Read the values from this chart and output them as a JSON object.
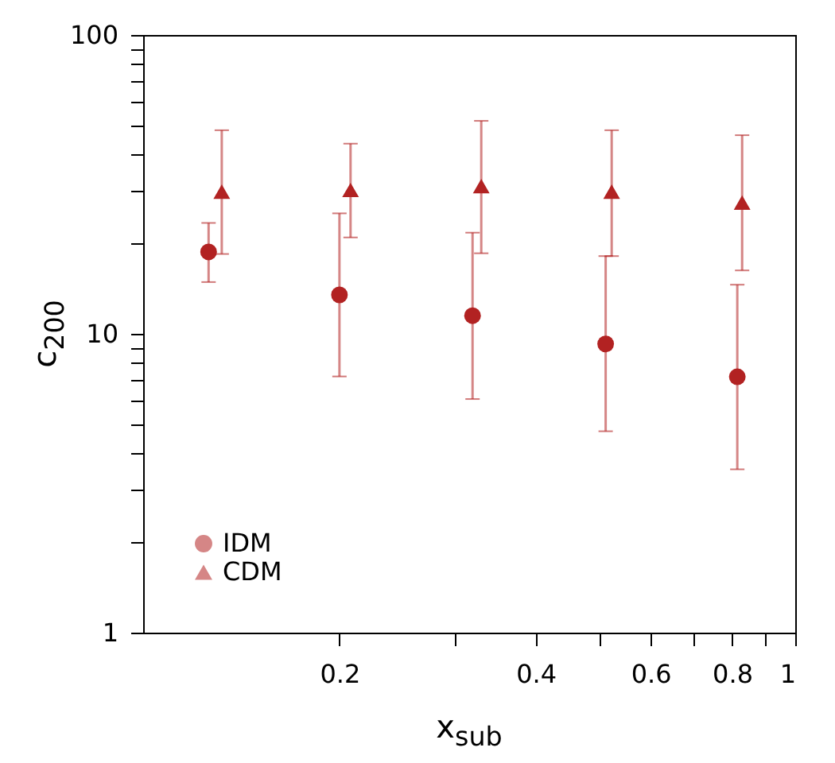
{
  "chart_data": {
    "type": "scatter",
    "xlabel": "x$_{sub}$",
    "ylabel": "c$_{200}$",
    "log": "xy",
    "grid": false,
    "legend": "bottom left",
    "xlim": [
      0.1,
      1
    ],
    "xticks": [
      {
        "value": 0.2,
        "label": "0.2"
      },
      {
        "value": 0.3,
        "label": null
      },
      {
        "value": 0.4,
        "label": "0.4"
      },
      {
        "value": 0.5,
        "label": null
      },
      {
        "value": 0.6,
        "label": "0.6"
      },
      {
        "value": 0.7,
        "label": null
      },
      {
        "value": 0.8,
        "label": "0.8"
      },
      {
        "value": 0.9,
        "label": null
      },
      {
        "value": 1,
        "label": "1"
      }
    ],
    "ylim": [
      1,
      100
    ],
    "yticks": [
      {
        "value": 1,
        "label": "1"
      },
      {
        "value": 2,
        "label": null
      },
      {
        "value": 3,
        "label": null
      },
      {
        "value": 4,
        "label": null
      },
      {
        "value": 5,
        "label": null
      },
      {
        "value": 6,
        "label": null
      },
      {
        "value": 7,
        "label": null
      },
      {
        "value": 8,
        "label": null
      },
      {
        "value": 9,
        "label": null
      },
      {
        "value": 10,
        "label": "10"
      },
      {
        "value": 20,
        "label": null
      },
      {
        "value": 30,
        "label": null
      },
      {
        "value": 40,
        "label": null
      },
      {
        "value": 50,
        "label": null
      },
      {
        "value": 60,
        "label": null
      },
      {
        "value": 70,
        "label": null
      },
      {
        "value": 80,
        "label": null
      },
      {
        "value": 90,
        "label": null
      },
      {
        "value": 100,
        "label": "100"
      }
    ],
    "series": [
      {
        "name": "IDM",
        "color": "#b22222",
        "marker": "circle",
        "x": [
          0.126,
          0.2,
          0.32,
          0.512,
          0.815
        ],
        "values": [
          18.8,
          13.5,
          11.5,
          9.25,
          7.18
        ],
        "errors": [
          [
            14.9,
            23.5
          ],
          [
            7.2,
            25.3
          ],
          [
            6.05,
            21.8
          ],
          [
            4.72,
            18.2
          ],
          [
            3.52,
            14.6
          ]
        ]
      },
      {
        "name": "CDM",
        "color": "#b22222",
        "marker": "triangle",
        "x": [
          0.132,
          0.208,
          0.33,
          0.523,
          0.829
        ],
        "values": [
          29.9,
          30.3,
          31.2,
          29.9,
          27.5
        ],
        "errors": [
          [
            18.5,
            48
          ],
          [
            21,
            43.3
          ],
          [
            18.6,
            51.6
          ],
          [
            18.2,
            48
          ],
          [
            16.3,
            46.2
          ]
        ]
      }
    ]
  }
}
